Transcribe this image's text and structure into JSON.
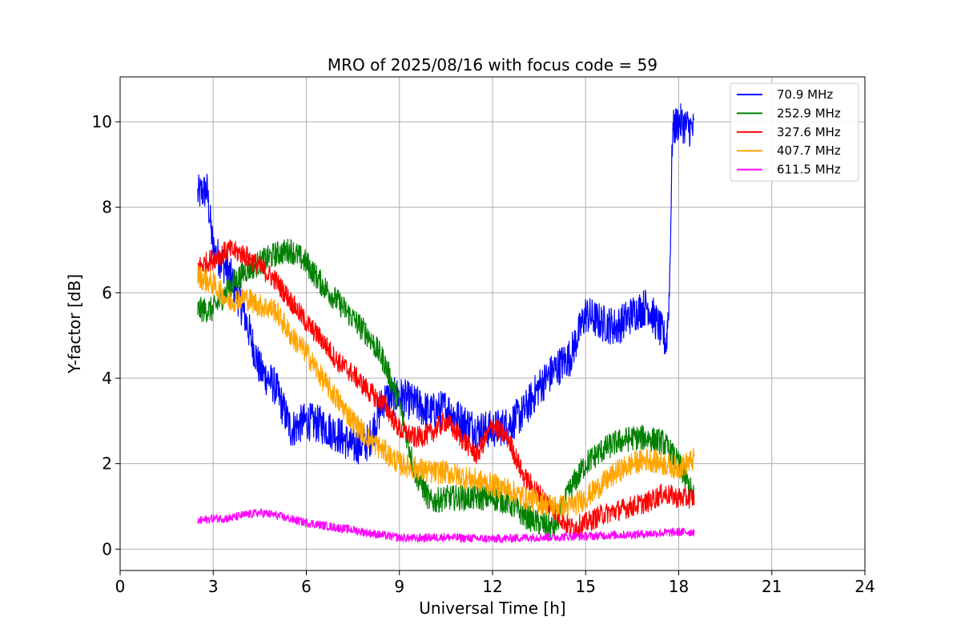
{
  "chart_data": {
    "type": "line",
    "title": "MRO of 2025/08/16 with focus code = 59",
    "xlabel": "Universal Time [h]",
    "ylabel": "Y-factor [dB]",
    "xlim": [
      0,
      24
    ],
    "ylim": [
      -0.5,
      11.05
    ],
    "xticks": [
      0,
      3,
      6,
      9,
      12,
      15,
      18,
      21,
      24
    ],
    "yticks": [
      0,
      2,
      4,
      6,
      8,
      10
    ],
    "grid": true,
    "legend_position": "top-right",
    "series": [
      {
        "name": " 70.9 MHz",
        "color": "#0000ff",
        "noise": 0.45,
        "x": [
          2.5,
          2.8,
          3.0,
          3.5,
          4.0,
          4.5,
          5.0,
          5.5,
          6.0,
          6.5,
          7.0,
          7.5,
          8.0,
          8.5,
          9.0,
          9.5,
          10.0,
          10.5,
          11.0,
          11.5,
          12.0,
          12.5,
          13.0,
          13.5,
          14.0,
          14.5,
          15.0,
          15.5,
          16.0,
          16.5,
          17.0,
          17.5,
          17.6,
          17.7,
          17.8,
          18.0,
          18.5
        ],
        "y": [
          8.3,
          8.4,
          7.0,
          6.5,
          5.5,
          4.2,
          3.8,
          2.8,
          3.0,
          2.9,
          2.7,
          2.4,
          2.5,
          3.5,
          3.6,
          3.4,
          3.2,
          3.3,
          3.0,
          2.8,
          2.8,
          2.9,
          3.2,
          3.8,
          4.2,
          4.5,
          5.5,
          5.3,
          5.2,
          5.5,
          5.7,
          5.0,
          4.8,
          6.0,
          9.8,
          10.0,
          9.8
        ]
      },
      {
        "name": "252.9 MHz",
        "color": "#008000",
        "noise": 0.3,
        "x": [
          2.5,
          3.0,
          3.5,
          4.0,
          4.5,
          5.0,
          5.5,
          6.0,
          6.5,
          7.0,
          7.5,
          8.0,
          8.5,
          9.0,
          9.5,
          10.0,
          10.5,
          11.0,
          11.5,
          12.0,
          12.5,
          13.0,
          13.5,
          14.0,
          14.5,
          15.0,
          15.5,
          16.0,
          16.5,
          17.0,
          17.5,
          18.0,
          18.5
        ],
        "y": [
          5.6,
          5.6,
          6.1,
          6.5,
          6.7,
          6.9,
          7.0,
          6.7,
          6.2,
          5.8,
          5.4,
          5.0,
          4.4,
          3.4,
          1.8,
          1.1,
          1.2,
          1.2,
          1.2,
          1.2,
          1.1,
          0.8,
          0.6,
          0.5,
          1.4,
          2.0,
          2.3,
          2.5,
          2.6,
          2.6,
          2.5,
          2.0,
          1.2
        ]
      },
      {
        "name": "327.6 MHz",
        "color": "#ff0000",
        "noise": 0.25,
        "x": [
          2.5,
          3.0,
          3.5,
          4.0,
          4.5,
          5.0,
          5.5,
          6.0,
          6.5,
          7.0,
          7.5,
          8.0,
          8.5,
          9.0,
          9.5,
          10.0,
          10.5,
          11.0,
          11.5,
          12.0,
          12.5,
          13.0,
          13.5,
          14.0,
          14.5,
          15.0,
          15.5,
          16.0,
          16.5,
          17.0,
          17.5,
          18.0,
          18.5
        ],
        "y": [
          6.6,
          6.8,
          7.0,
          6.9,
          6.6,
          6.3,
          5.8,
          5.3,
          4.9,
          4.4,
          4.1,
          3.7,
          3.4,
          2.8,
          2.6,
          2.7,
          3.0,
          2.6,
          2.2,
          2.9,
          2.6,
          1.7,
          1.3,
          0.9,
          0.5,
          0.6,
          0.8,
          0.9,
          1.0,
          1.1,
          1.3,
          1.2,
          1.2
        ]
      },
      {
        "name": "407.7 MHz",
        "color": "#ffa500",
        "noise": 0.28,
        "x": [
          2.5,
          3.0,
          3.5,
          4.0,
          4.5,
          5.0,
          5.5,
          6.0,
          6.5,
          7.0,
          7.5,
          8.0,
          8.5,
          9.0,
          9.5,
          10.0,
          10.5,
          11.0,
          11.5,
          12.0,
          12.5,
          13.0,
          13.5,
          14.0,
          14.5,
          15.0,
          15.5,
          16.0,
          16.5,
          17.0,
          17.5,
          18.0,
          18.5
        ],
        "y": [
          6.4,
          6.2,
          5.8,
          5.9,
          5.7,
          5.6,
          5.0,
          4.6,
          4.0,
          3.5,
          3.0,
          2.6,
          2.3,
          2.0,
          1.9,
          1.8,
          1.8,
          1.7,
          1.6,
          1.5,
          1.4,
          1.2,
          1.1,
          1.0,
          1.0,
          1.2,
          1.5,
          1.8,
          2.0,
          2.1,
          2.0,
          1.9,
          2.1
        ]
      },
      {
        "name": "611.5 MHz",
        "color": "#ff00ff",
        "noise": 0.1,
        "x": [
          2.5,
          3.0,
          3.5,
          4.0,
          4.5,
          5.0,
          5.5,
          6.0,
          6.5,
          7.0,
          7.5,
          8.0,
          8.5,
          9.0,
          9.5,
          10.0,
          10.5,
          11.0,
          11.5,
          12.0,
          12.5,
          13.0,
          13.5,
          14.0,
          14.5,
          15.0,
          15.5,
          16.0,
          16.5,
          17.0,
          17.5,
          18.0,
          18.5
        ],
        "y": [
          0.65,
          0.72,
          0.72,
          0.8,
          0.85,
          0.8,
          0.7,
          0.62,
          0.56,
          0.5,
          0.45,
          0.38,
          0.32,
          0.27,
          0.25,
          0.27,
          0.28,
          0.26,
          0.25,
          0.24,
          0.25,
          0.27,
          0.28,
          0.28,
          0.3,
          0.3,
          0.32,
          0.33,
          0.34,
          0.36,
          0.38,
          0.4,
          0.4
        ]
      }
    ]
  }
}
